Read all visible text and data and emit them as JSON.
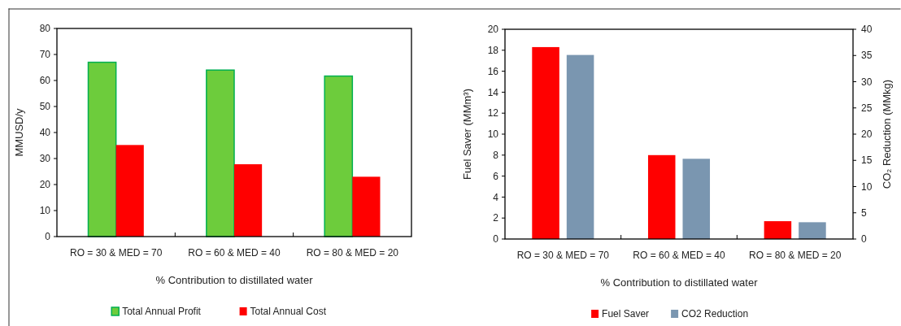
{
  "chart_data": [
    {
      "type": "bar",
      "categories": [
        "RO = 30 & MED = 70",
        "RO = 60 & MED = 40",
        "RO = 80 & MED = 20"
      ],
      "xlabel": "% Contribution to distillated water",
      "ylabel": "MMUSD/y",
      "ylim": [
        0,
        80
      ],
      "yticks": [
        0,
        10,
        20,
        30,
        40,
        50,
        60,
        70,
        80
      ],
      "grid": false,
      "legend": "bottom",
      "series": [
        {
          "name": "Total Annual Profit",
          "color": "#6dcc3c",
          "values": [
            67,
            64,
            61.7
          ]
        },
        {
          "name": "Total Annual Cost",
          "color": "#ff0000",
          "values": [
            35.2,
            27.8,
            23
          ]
        }
      ]
    },
    {
      "type": "bar",
      "categories": [
        "RO = 30 & MED = 70",
        "RO = 60 & MED = 40",
        "RO = 80 & MED = 20"
      ],
      "xlabel": "% Contribution to distillated water",
      "ylabel": "Fuel Saver (MMm³)",
      "y2label": "CO₂ Reduction (MMkg)",
      "ylim": [
        0,
        20
      ],
      "yticks": [
        0,
        2,
        4,
        6,
        8,
        10,
        12,
        14,
        16,
        18,
        20
      ],
      "y2lim": [
        0,
        40
      ],
      "y2ticks": [
        0,
        5,
        10,
        15,
        20,
        25,
        30,
        35,
        40
      ],
      "grid": false,
      "legend": "bottom",
      "series": [
        {
          "name": "Fuel Saver",
          "color": "#ff0000",
          "values": [
            18.3,
            8.0,
            1.7
          ]
        },
        {
          "name": "CO2 Reduction",
          "color": "#7a96b0",
          "values": [
            35.1,
            15.3,
            3.2
          ],
          "axis": "y2"
        }
      ]
    }
  ]
}
